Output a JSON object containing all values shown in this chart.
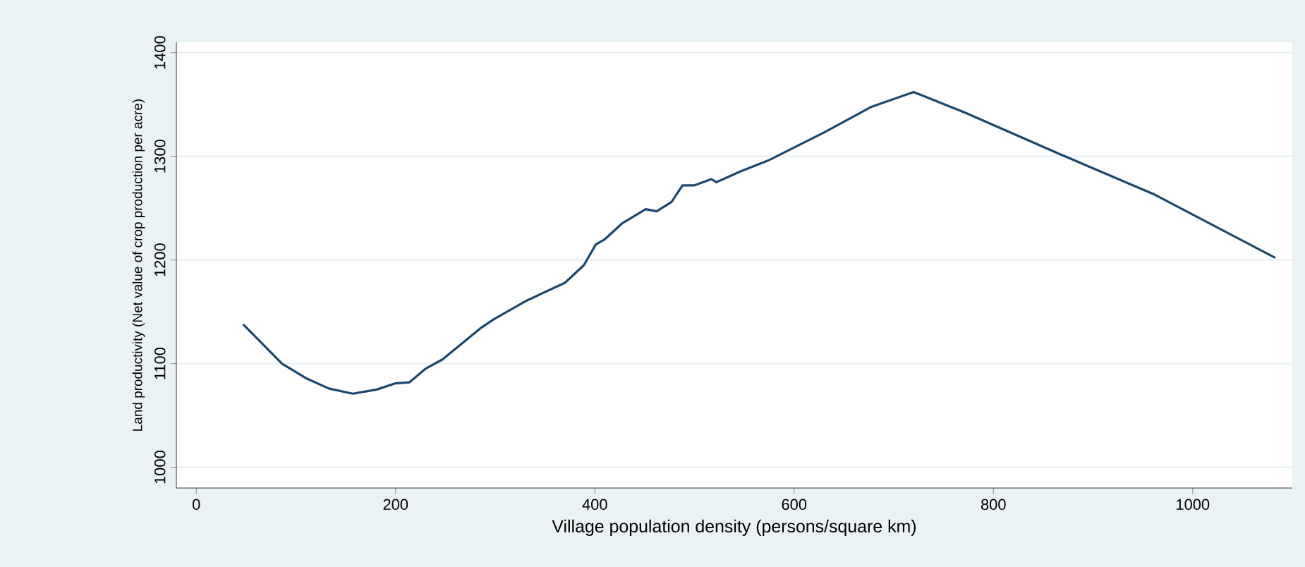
{
  "chart_data": {
    "type": "line",
    "xlabel": "Village population density (persons/square km)",
    "ylabel": "Land productivity (Net value of crop production per acre)",
    "xlim": [
      -20,
      1100
    ],
    "xticks": [
      0,
      200,
      400,
      600,
      800,
      1000
    ],
    "ylim": [
      980,
      1410
    ],
    "yticks": [
      1000,
      1100,
      1200,
      1300,
      1400
    ],
    "grid": "y",
    "marker": "none",
    "line_style": "solid",
    "series": [
      {
        "color": "#1a476f",
        "x": [
          47,
          86,
          110,
          133,
          157,
          181,
          200,
          214,
          230,
          247,
          285,
          299,
          332,
          370,
          389,
          401,
          410,
          427,
          451,
          462,
          477,
          488,
          500,
          517,
          522,
          545,
          574,
          630,
          678,
          720,
          772,
          867,
          962,
          1083
        ],
        "values": [
          1138,
          1100,
          1086,
          1076,
          1071,
          1075,
          1081,
          1082,
          1095,
          1104,
          1134,
          1143,
          1161,
          1178,
          1195,
          1215,
          1220,
          1235,
          1249,
          1247,
          1256,
          1272,
          1272,
          1278,
          1275,
          1285,
          1296,
          1323,
          1348,
          1362,
          1342,
          1302,
          1263,
          1202
        ]
      }
    ]
  }
}
